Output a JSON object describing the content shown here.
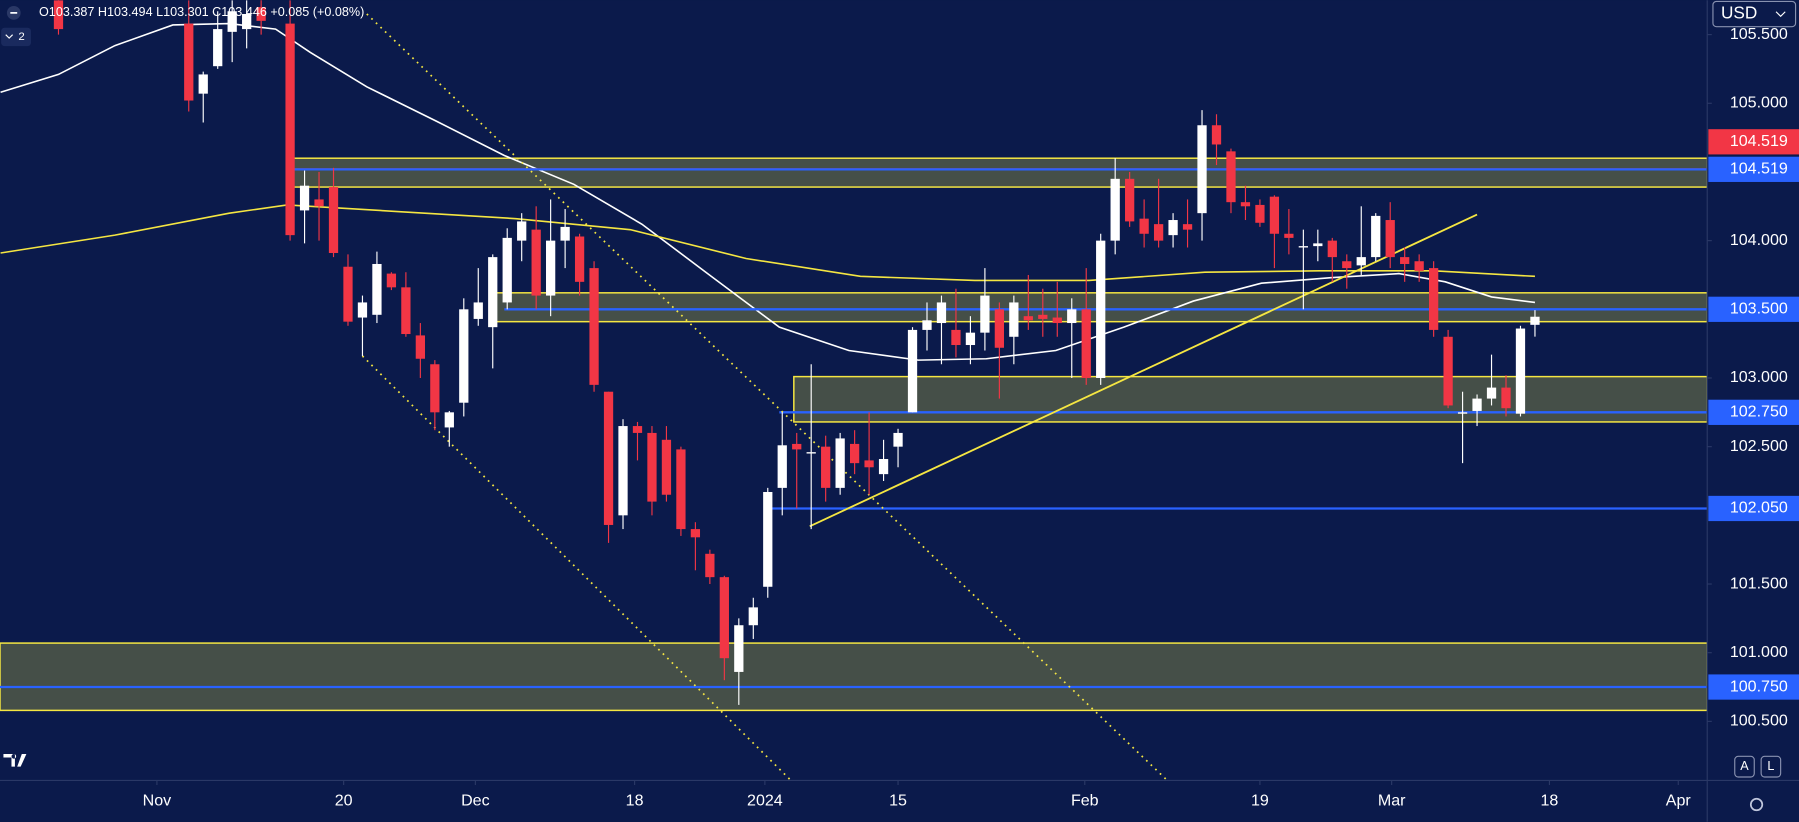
{
  "header": {
    "ohlc": "O103.387 H103.494 L103.301 C103.446 +0.085 (+0.08%)",
    "indicators": "2",
    "currency": "USD",
    "auto": "A",
    "log": "L"
  },
  "chart_data": {
    "type": "candlestick",
    "x": [
      0,
      9,
      10,
      11,
      12,
      13,
      14,
      16,
      17,
      18,
      19,
      20,
      21,
      22,
      23,
      24,
      25,
      26,
      27,
      28,
      29,
      30,
      31,
      32,
      33,
      34,
      35,
      36,
      37,
      38,
      39,
      40,
      41,
      42,
      43,
      44,
      45,
      46,
      47,
      48,
      49,
      50,
      51,
      52,
      53,
      54,
      55,
      56,
      57,
      58,
      59,
      60,
      61,
      62,
      63,
      64,
      65,
      66,
      67,
      68,
      69,
      70,
      71,
      72,
      73,
      74,
      75,
      76,
      77,
      78,
      79,
      80,
      81,
      82,
      83,
      84,
      85,
      86,
      87,
      88,
      89,
      90,
      91,
      92,
      93,
      94,
      95,
      96,
      97,
      98,
      99,
      100,
      101,
      102
    ],
    "open": [
      105.75,
      105.58,
      105.07,
      105.27,
      105.52,
      105.54,
      105.7,
      105.58,
      104.22,
      104.3,
      104.39,
      103.81,
      103.44,
      103.46,
      103.76,
      103.66,
      103.31,
      103.1,
      102.64,
      102.82,
      103.43,
      103.37,
      103.55,
      104.0,
      104.08,
      103.6,
      104.0,
      104.03,
      103.8,
      102.9,
      102.0,
      102.65,
      102.6,
      102.55,
      102.48,
      101.9,
      101.72,
      101.55,
      100.86,
      101.2,
      101.48,
      102.2,
      102.52,
      102.45,
      102.5,
      102.2,
      102.52,
      102.4,
      102.3,
      102.5,
      102.75,
      103.35,
      103.4,
      103.35,
      103.24,
      103.33,
      103.5,
      103.3,
      103.45,
      103.46,
      103.44,
      103.4,
      103.5,
      103.0,
      104.0,
      104.45,
      104.16,
      104.12,
      104.04,
      104.12,
      104.2,
      104.84,
      104.65,
      104.28,
      104.26,
      104.32,
      104.05,
      103.95,
      103.96,
      104.0,
      103.85,
      103.82,
      103.88,
      104.15,
      103.88,
      103.85,
      103.8,
      103.3,
      102.74,
      102.76,
      102.85,
      102.93,
      102.74,
      103.387
    ],
    "high": [
      105.8,
      105.75,
      105.23,
      105.67,
      105.75,
      105.75,
      105.8,
      105.75,
      104.51,
      104.5,
      104.53,
      103.9,
      103.6,
      103.92,
      103.77,
      103.77,
      103.4,
      103.13,
      102.76,
      103.58,
      103.8,
      103.9,
      104.09,
      104.2,
      104.25,
      104.3,
      104.23,
      104.05,
      103.85,
      102.9,
      102.7,
      102.68,
      102.65,
      102.65,
      102.5,
      101.95,
      101.75,
      101.56,
      101.25,
      101.4,
      102.2,
      102.75,
      102.6,
      103.1,
      102.58,
      102.6,
      102.62,
      102.75,
      102.55,
      102.63,
      103.37,
      103.55,
      103.6,
      103.65,
      103.45,
      103.8,
      103.55,
      103.6,
      103.75,
      103.65,
      103.7,
      103.58,
      103.8,
      104.05,
      104.6,
      104.5,
      104.3,
      104.45,
      104.2,
      104.3,
      104.95,
      104.92,
      104.67,
      104.4,
      104.3,
      104.33,
      104.23,
      104.08,
      104.08,
      104.02,
      103.9,
      104.25,
      104.2,
      104.28,
      103.95,
      103.9,
      103.85,
      103.35,
      102.9,
      102.88,
      103.17,
      103.02,
      103.38,
      103.494
    ],
    "low": [
      105.5,
      104.94,
      104.86,
      105.25,
      105.3,
      105.4,
      105.5,
      104.0,
      103.98,
      104.0,
      103.88,
      103.38,
      103.16,
      103.4,
      103.64,
      103.3,
      103.0,
      102.62,
      102.5,
      102.72,
      103.38,
      103.07,
      103.5,
      103.85,
      103.5,
      103.45,
      103.8,
      103.6,
      102.9,
      101.8,
      101.9,
      102.4,
      102.0,
      102.1,
      101.85,
      101.6,
      101.5,
      100.8,
      100.62,
      101.1,
      101.4,
      102.0,
      102.05,
      101.9,
      102.1,
      102.15,
      102.3,
      102.15,
      102.25,
      102.35,
      102.75,
      103.2,
      103.1,
      103.15,
      103.1,
      103.2,
      102.85,
      103.1,
      103.35,
      103.3,
      103.3,
      103.0,
      102.95,
      102.95,
      103.9,
      104.1,
      103.95,
      103.95,
      103.95,
      103.95,
      104.0,
      104.55,
      104.2,
      104.15,
      104.1,
      103.8,
      103.9,
      103.5,
      103.85,
      103.7,
      103.65,
      103.75,
      103.85,
      103.8,
      103.7,
      103.7,
      103.3,
      102.78,
      102.38,
      102.65,
      102.8,
      102.72,
      102.72,
      103.301
    ],
    "close": [
      105.54,
      105.02,
      105.21,
      105.54,
      105.67,
      105.65,
      105.6,
      104.04,
      104.4,
      104.25,
      103.91,
      103.41,
      103.55,
      103.83,
      103.66,
      103.32,
      103.14,
      102.75,
      102.75,
      103.5,
      103.55,
      103.88,
      104.02,
      104.14,
      103.6,
      104.0,
      104.1,
      103.7,
      102.95,
      101.93,
      102.65,
      102.6,
      102.1,
      102.15,
      101.9,
      101.84,
      101.55,
      100.96,
      101.2,
      101.33,
      102.17,
      102.51,
      102.48,
      102.46,
      102.2,
      102.56,
      102.38,
      102.35,
      102.41,
      102.6,
      103.35,
      103.42,
      103.55,
      103.24,
      103.33,
      103.6,
      103.22,
      103.55,
      103.42,
      103.43,
      103.4,
      103.5,
      103.0,
      104.0,
      104.45,
      104.14,
      104.05,
      104.0,
      104.15,
      104.08,
      104.84,
      104.7,
      104.28,
      104.25,
      104.13,
      104.05,
      104.02,
      103.96,
      103.98,
      103.88,
      103.8,
      103.88,
      104.18,
      103.88,
      103.83,
      103.78,
      103.35,
      102.8,
      102.75,
      102.85,
      102.93,
      102.78,
      103.36,
      103.446
    ],
    "up_color": "#ffffff",
    "down_color": "#f23645",
    "xlim": [
      -4.04,
      113.9
    ],
    "xticks": [
      {
        "value": 6.8,
        "label": "Nov"
      },
      {
        "value": 19.7,
        "label": "20"
      },
      {
        "value": 28.8,
        "label": "Dec"
      },
      {
        "value": 39.8,
        "label": "18"
      },
      {
        "value": 48.8,
        "label": "2024"
      },
      {
        "value": 58.0,
        "label": "15"
      },
      {
        "value": 70.9,
        "label": "Feb"
      },
      {
        "value": 83.0,
        "label": "19"
      },
      {
        "value": 92.1,
        "label": "Mar"
      },
      {
        "value": 103.0,
        "label": "18"
      },
      {
        "value": 111.9,
        "label": "Apr"
      }
    ],
    "ylim": [
      100.07,
      105.75
    ],
    "yticks": [
      {
        "value": 105.5,
        "label": "105.500"
      },
      {
        "value": 105,
        "label": "105.000"
      },
      {
        "value": 104,
        "label": "104.000"
      },
      {
        "value": 103,
        "label": "103.000"
      },
      {
        "value": 102.5,
        "label": "102.500"
      },
      {
        "value": 101.5,
        "label": "101.500"
      },
      {
        "value": 101,
        "label": "101.000"
      },
      {
        "value": 100.5,
        "label": "100.500"
      }
    ],
    "grid": false,
    "moving_averages": [
      {
        "color": "#ffffff",
        "x": [
          -4.0,
          0,
          3.9,
          7.9,
          11.8,
          15.0,
          17.4,
          21.3,
          26.1,
          30.8,
          35.6,
          40.3,
          45.1,
          49.8,
          54.6,
          59.4,
          64.1,
          68.9,
          73.6,
          78.4,
          83.1,
          87.9,
          92.6,
          95.8,
          99.0,
          102
        ],
        "values": [
          105.08,
          105.21,
          105.42,
          105.57,
          105.58,
          105.54,
          105.37,
          105.12,
          104.87,
          104.62,
          104.41,
          104.12,
          103.74,
          103.37,
          103.2,
          103.13,
          103.14,
          103.2,
          103.37,
          103.56,
          103.69,
          103.73,
          103.76,
          103.7,
          103.59,
          103.55
        ]
      },
      {
        "color": "#f5e642",
        "x": [
          -4.0,
          3.9,
          11.8,
          15.8,
          23.7,
          31.6,
          39.5,
          47.5,
          55.4,
          63.3,
          71.2,
          79.2,
          87.1,
          95.0,
          102
        ],
        "values": [
          103.91,
          104.04,
          104.2,
          104.26,
          104.21,
          104.16,
          104.08,
          103.87,
          103.74,
          103.71,
          103.71,
          103.77,
          103.78,
          103.78,
          103.74
        ]
      }
    ],
    "zones": [
      {
        "x_start": 16.2,
        "top": 104.6,
        "bottom": 104.39
      },
      {
        "x_start": 30.2,
        "top": 103.62,
        "bottom": 103.41
      },
      {
        "x_start": 50.8,
        "top": 103.01,
        "bottom": 102.68
      },
      {
        "x_start": -4.04,
        "top": 101.07,
        "bottom": 100.58
      }
    ],
    "zone_color": "#f5e642",
    "levels": [
      {
        "price": 104.519,
        "color": "#f23645",
        "x_start": 16.2
      },
      {
        "price": 104.519,
        "color": "#2962ff",
        "x_start": 16.2
      },
      {
        "price": {
          "value": 103.5,
          "label": "103.500"
        },
        "color": "#2962ff",
        "x_start": 30.8
      },
      {
        "price": {
          "value": 102.75,
          "label": "102.750"
        },
        "color": "#2962ff",
        "x_start": 49.8
      },
      {
        "price": {
          "value": 102.05,
          "label": "102.050"
        },
        "color": "#2962ff",
        "x_start": 49.2
      },
      {
        "price": {
          "value": 100.75,
          "label": "100.750"
        },
        "color": "#2962ff",
        "x_start": -4.04
      }
    ],
    "trendlines": [
      {
        "color": "#f5e642",
        "dotted": false,
        "x": [
          51.9,
          98.0
        ],
        "y": [
          101.92,
          104.19
        ]
      },
      {
        "color": "#f5e642",
        "dotted": true,
        "x": [
          21.3,
          76.6
        ],
        "y": [
          105.65,
          100.07
        ]
      },
      {
        "color": "#f5e642",
        "dotted": true,
        "x": [
          21.0,
          50.6
        ],
        "y": [
          103.16,
          100.07
        ]
      }
    ]
  }
}
